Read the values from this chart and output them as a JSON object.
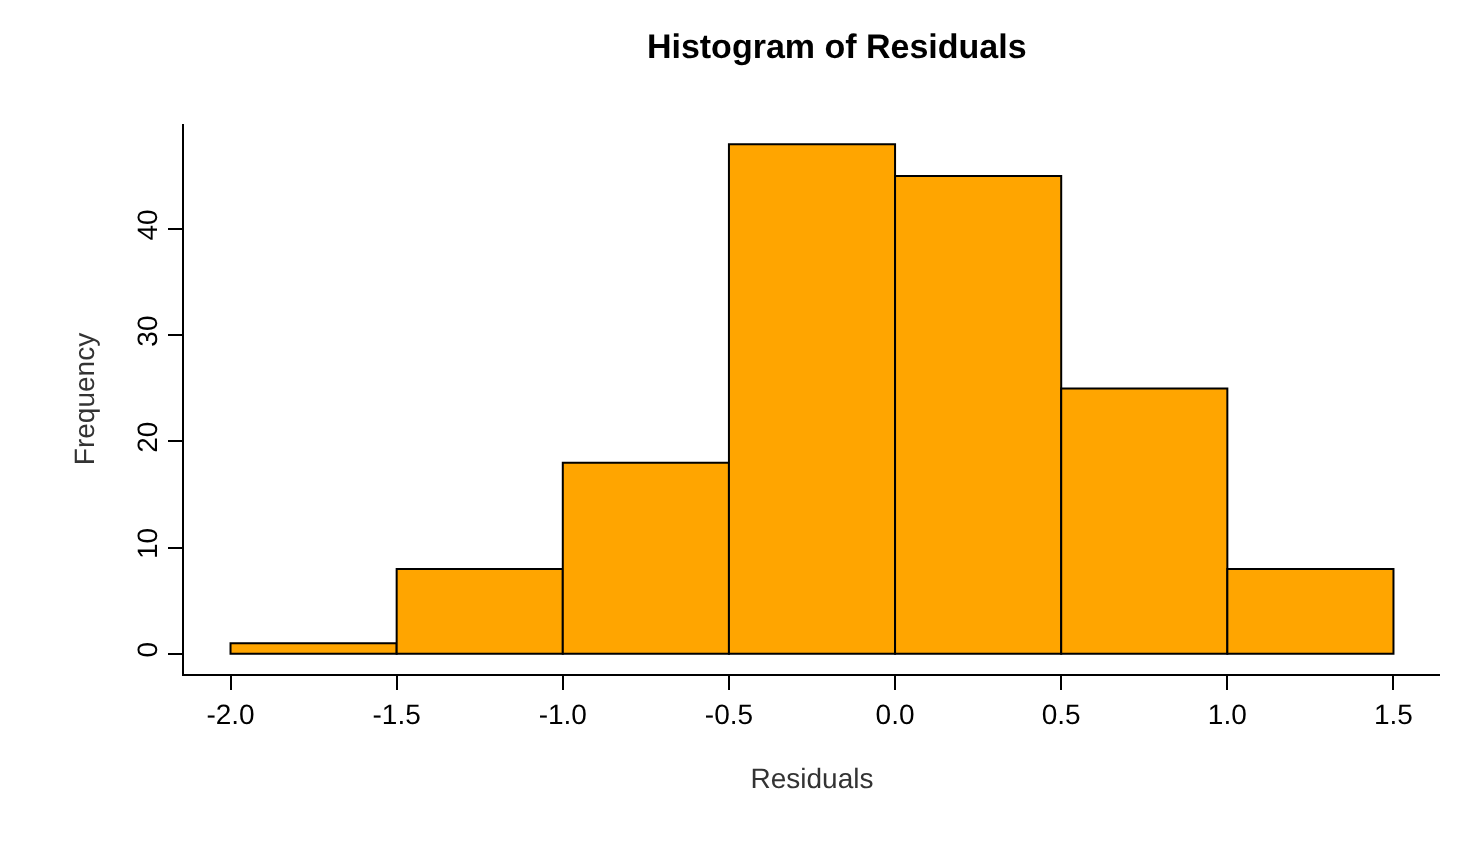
{
  "chart_data": {
    "type": "histogram",
    "title": "Histogram of Residuals",
    "xlabel": "Residuals",
    "ylabel": "Frequency",
    "bins": [
      -2.0,
      -1.5,
      -1.0,
      -0.5,
      0.0,
      0.5,
      1.0,
      1.5
    ],
    "values": [
      1,
      8,
      18,
      48,
      45,
      25,
      8
    ],
    "color": "#ffa500",
    "xlim": [
      -2.14,
      1.64
    ],
    "ylim": [
      -1.9,
      49.9
    ],
    "xticks": [
      {
        "value": -2,
        "label": "-2.0"
      },
      {
        "value": -1.5,
        "label": "-1.5"
      },
      {
        "value": -1,
        "label": "-1.0"
      },
      {
        "value": -0.5,
        "label": "-0.5"
      },
      {
        "value": 0,
        "label": "0.0"
      },
      {
        "value": 0.5,
        "label": "0.5"
      },
      {
        "value": 1,
        "label": "1.0"
      },
      {
        "value": 1.5,
        "label": "1.5"
      }
    ],
    "yticks": [
      0,
      10,
      20,
      30,
      40
    ],
    "grid": false
  }
}
